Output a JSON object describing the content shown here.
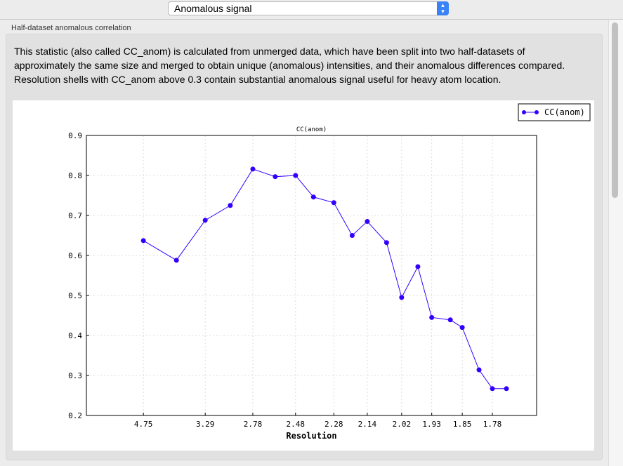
{
  "selector": {
    "value": "Anomalous signal"
  },
  "group": {
    "label": "Half-dataset anomalous correlation",
    "description": "This statistic (also called CC_anom) is calculated from unmerged data, which have been split into two half-datasets of approximately the same size and merged to obtain unique (anomalous) intensities, and their anomalous differences compared.  Resolution shells with CC_anom above 0.3 contain substantial anomalous signal useful for heavy atom location."
  },
  "chart_data": {
    "type": "line",
    "title": "CC(anom)",
    "xlabel": "Resolution",
    "ylabel": "",
    "x_scale": "1/d^2 (labelled as resolution d)",
    "xlim_inv_d2": [
      0,
      0.35
    ],
    "ylim": [
      0.2,
      0.9
    ],
    "yticks": [
      "0.2",
      "0.3",
      "0.4",
      "0.5",
      "0.6",
      "0.7",
      "0.8",
      "0.9"
    ],
    "xticks": [
      "4.75",
      "3.29",
      "2.78",
      "2.48",
      "2.28",
      "2.14",
      "2.02",
      "1.93",
      "1.85",
      "1.78"
    ],
    "grid": true,
    "legend": "top-right",
    "color": "#3300ff",
    "series": [
      {
        "name": "CC(anom)",
        "x": [
          4.75,
          3.78,
          3.29,
          2.99,
          2.78,
          2.61,
          2.48,
          2.38,
          2.28,
          2.2,
          2.14,
          2.07,
          2.02,
          1.97,
          1.93,
          1.88,
          1.85,
          1.81,
          1.78,
          1.75
        ],
        "values": [
          0.637,
          0.588,
          0.688,
          0.725,
          0.816,
          0.797,
          0.8,
          0.746,
          0.732,
          0.65,
          0.685,
          0.632,
          0.495,
          0.572,
          0.445,
          0.439,
          0.42,
          0.314,
          0.267,
          0.267
        ]
      }
    ]
  }
}
